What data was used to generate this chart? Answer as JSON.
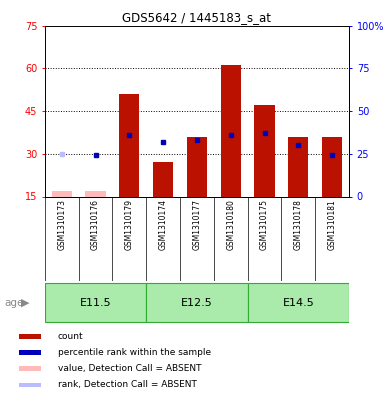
{
  "title": "GDS5642 / 1445183_s_at",
  "samples": [
    "GSM1310173",
    "GSM1310176",
    "GSM1310179",
    "GSM1310174",
    "GSM1310177",
    "GSM1310180",
    "GSM1310175",
    "GSM1310178",
    "GSM1310181"
  ],
  "bar_values": [
    null,
    null,
    51,
    27,
    36,
    61,
    47,
    36,
    36
  ],
  "bar_bottom": 15,
  "absent_value": [
    17,
    17,
    null,
    null,
    null,
    null,
    null,
    null,
    null
  ],
  "rank_pct": [
    null,
    24,
    36,
    32,
    33,
    36,
    37,
    30,
    24
  ],
  "rank_absent_pct": [
    25,
    null,
    null,
    null,
    null,
    null,
    null,
    null,
    null
  ],
  "ylim_left": [
    15,
    75
  ],
  "ylim_right": [
    0,
    100
  ],
  "yticks_left": [
    15,
    30,
    45,
    60,
    75
  ],
  "yticks_right": [
    0,
    25,
    50,
    75,
    100
  ],
  "ytick_labels_left": [
    "15",
    "30",
    "45",
    "60",
    "75"
  ],
  "ytick_labels_right": [
    "0",
    "25",
    "50",
    "75",
    "100%"
  ],
  "bar_color": "#bb1100",
  "rank_color": "#0000bb",
  "absent_bar_color": "#ffbbbb",
  "absent_rank_color": "#bbbbff",
  "age_groups": [
    {
      "label": "E11.5",
      "start": 0,
      "end": 2
    },
    {
      "label": "E12.5",
      "start": 3,
      "end": 5
    },
    {
      "label": "E14.5",
      "start": 6,
      "end": 8
    }
  ],
  "age_group_color": "#aaeaaa",
  "age_group_border_color": "#33aa33",
  "sample_bg_color": "#cccccc",
  "legend_items": [
    {
      "color": "#bb1100",
      "label": "count"
    },
    {
      "color": "#0000bb",
      "label": "percentile rank within the sample"
    },
    {
      "color": "#ffbbbb",
      "label": "value, Detection Call = ABSENT"
    },
    {
      "color": "#bbbbff",
      "label": "rank, Detection Call = ABSENT"
    }
  ]
}
